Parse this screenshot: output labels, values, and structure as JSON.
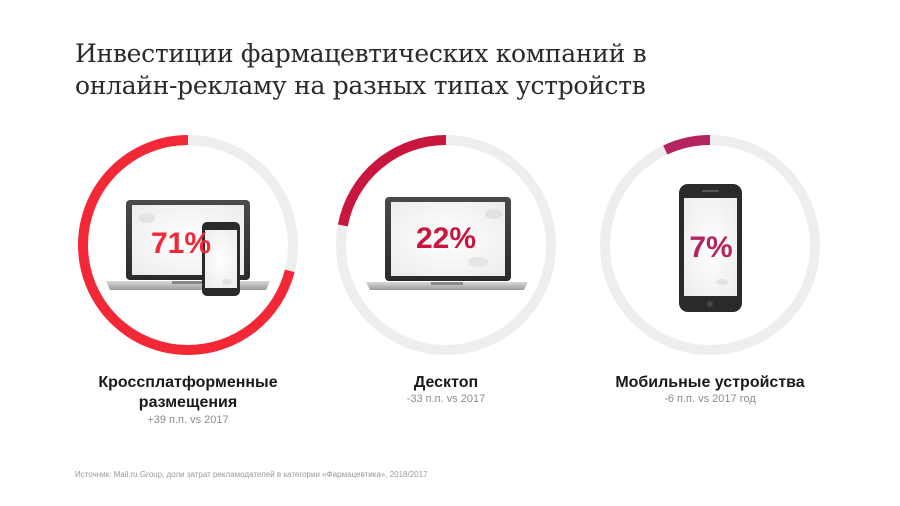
{
  "title": "Инвестиции фармацевтических компаний в онлайн-рекламу на разных типах устройств",
  "source": "Источник: Mail.ru Group, доли затрат рекламодателей в категории «Фармацевтика», 2018/2017",
  "colors": {
    "track": "#eeeeee",
    "crossplatform": "#f32837",
    "desktop": "#c8163f",
    "mobile": "#b4245e"
  },
  "chart_data": {
    "type": "pie",
    "categories": [
      "Кроссплатформенные размещения",
      "Десктоп",
      "Мобильные устройства"
    ],
    "values": [
      71,
      22,
      7
    ],
    "value_labels": [
      "71%",
      "22%",
      "7%"
    ],
    "changes": [
      "+39 п.п. vs 2017",
      "-33 п.п. vs 2017",
      "-6 п.п. vs 2017 год"
    ],
    "icons": [
      "laptop-and-phone-icon",
      "laptop-icon",
      "smartphone-icon"
    ]
  }
}
